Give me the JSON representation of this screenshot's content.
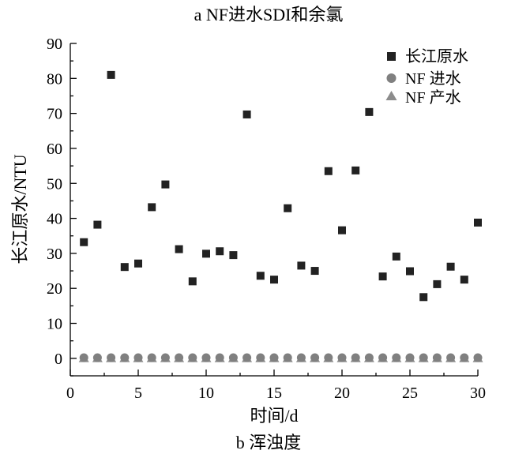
{
  "chart_data": {
    "type": "scatter",
    "top_caption": "a  NF进水SDI和余氯",
    "bottom_caption": "b  浑浊度",
    "xlabel": "时间/d",
    "ylabel": "长江原水/NTU",
    "xlim": [
      0,
      30
    ],
    "ylim": [
      -5,
      90
    ],
    "x_ticks": [
      "0",
      "5",
      "10",
      "15",
      "20",
      "25",
      "30"
    ],
    "y_ticks": [
      "0",
      "10",
      "20",
      "30",
      "40",
      "50",
      "60",
      "70",
      "80",
      "90"
    ],
    "grid": false,
    "legend_position": "top-right",
    "series": [
      {
        "name": "长江原水",
        "marker": "square",
        "color": "#222222",
        "x": [
          1,
          2,
          3,
          4,
          5,
          6,
          7,
          8,
          9,
          10,
          11,
          12,
          13,
          14,
          15,
          16,
          17,
          18,
          19,
          20,
          21,
          22,
          23,
          24,
          25,
          26,
          27,
          28,
          29,
          30
        ],
        "y": [
          33.2,
          38.2,
          81,
          26.1,
          27.1,
          43.2,
          49.7,
          31.2,
          22,
          29.9,
          30.6,
          29.5,
          69.7,
          23.6,
          22.5,
          42.9,
          26.5,
          25,
          53.5,
          36.6,
          53.7,
          70.4,
          23.4,
          29.1,
          24.9,
          17.5,
          21.2,
          26.2,
          22.5,
          38.8
        ]
      },
      {
        "name": "NF 进水",
        "marker": "circle",
        "color": "#808080",
        "x": [
          1,
          2,
          3,
          4,
          5,
          6,
          7,
          8,
          9,
          10,
          11,
          12,
          13,
          14,
          15,
          16,
          17,
          18,
          19,
          20,
          21,
          22,
          23,
          24,
          25,
          26,
          27,
          28,
          29,
          30
        ],
        "y": [
          0.2,
          0.2,
          0.2,
          0.2,
          0.2,
          0.2,
          0.2,
          0.2,
          0.2,
          0.2,
          0.2,
          0.2,
          0.2,
          0.2,
          0.2,
          0.2,
          0.2,
          0.2,
          0.2,
          0.2,
          0.2,
          0.2,
          0.2,
          0.2,
          0.2,
          0.2,
          0.2,
          0.2,
          0.2,
          0.2
        ]
      },
      {
        "name": "NF 产水",
        "marker": "triangle",
        "color": "#8c8c8c",
        "x": [
          1,
          2,
          3,
          4,
          5,
          6,
          7,
          8,
          9,
          10,
          11,
          12,
          13,
          14,
          15,
          16,
          17,
          18,
          19,
          20,
          21,
          22,
          23,
          24,
          25,
          26,
          27,
          28,
          29,
          30
        ],
        "y": [
          0.05,
          0.05,
          0.05,
          0.05,
          0.05,
          0.05,
          0.05,
          0.05,
          0.05,
          0.05,
          0.05,
          0.05,
          0.05,
          0.05,
          0.05,
          0.05,
          0.05,
          0.05,
          0.05,
          0.05,
          0.05,
          0.05,
          0.05,
          0.05,
          0.05,
          0.05,
          0.05,
          0.05,
          0.05,
          0.05
        ]
      }
    ]
  }
}
